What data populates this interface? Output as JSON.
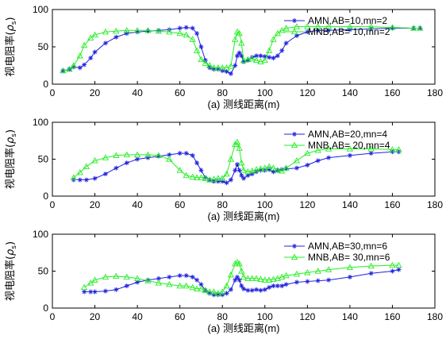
{
  "colors": {
    "series1": "#2020e0",
    "series2": "#22ee22",
    "axis": "#000000"
  },
  "chart_data": [
    {
      "type": "line",
      "xlabel": "(a) 测线距离(m)",
      "ylabel_prefix": "视电阻率(",
      "ylabel_symbol": "ρ",
      "ylabel_sub": "s",
      "ylabel_suffix": ")",
      "xlim": [
        0,
        180
      ],
      "ylim": [
        0,
        100
      ],
      "xticks": [
        "0",
        "20",
        "40",
        "60",
        "80",
        "100",
        "120",
        "140",
        "160",
        "180"
      ],
      "yticks": [
        "0",
        "50",
        "100"
      ],
      "legend_position": "top-right",
      "series": [
        {
          "name": "AMN,AB=10,mn=2",
          "marker": "star",
          "x": [
            5,
            8,
            10,
            13,
            15,
            18,
            20,
            25,
            30,
            35,
            40,
            45,
            50,
            55,
            60,
            63,
            66,
            68,
            70,
            72,
            74,
            76,
            78,
            80,
            82,
            84,
            86,
            87,
            88,
            89,
            90,
            92,
            94,
            96,
            98,
            100,
            102,
            104,
            106,
            108,
            110,
            115,
            120,
            125,
            130,
            140,
            150,
            160,
            170,
            173
          ],
          "y": [
            18,
            20,
            23,
            22,
            26,
            35,
            43,
            55,
            63,
            68,
            70,
            71,
            72,
            73,
            75,
            76,
            75,
            68,
            50,
            32,
            22,
            20,
            20,
            18,
            17,
            14,
            25,
            38,
            42,
            38,
            30,
            32,
            36,
            38,
            38,
            37,
            36,
            35,
            38,
            45,
            55,
            65,
            70,
            72,
            72,
            73,
            74,
            75,
            75,
            75
          ]
        },
        {
          "name": "MNB,AB= 10,mn=2",
          "marker": "triangle",
          "x": [
            5,
            8,
            10,
            13,
            15,
            18,
            20,
            25,
            30,
            35,
            40,
            45,
            50,
            55,
            60,
            63,
            66,
            68,
            70,
            72,
            74,
            76,
            78,
            80,
            82,
            84,
            86,
            87,
            88,
            89,
            90,
            92,
            94,
            96,
            98,
            100,
            102,
            104,
            106,
            108,
            110,
            115,
            120,
            125,
            130,
            140,
            150,
            160,
            170,
            173
          ],
          "y": [
            18,
            20,
            25,
            38,
            52,
            62,
            66,
            70,
            71,
            72,
            72,
            72,
            71,
            70,
            68,
            66,
            60,
            45,
            33,
            28,
            25,
            22,
            22,
            22,
            22,
            24,
            60,
            70,
            68,
            55,
            32,
            33,
            34,
            32,
            30,
            32,
            45,
            60,
            68,
            72,
            75,
            77,
            77,
            77,
            77,
            77,
            77,
            76,
            75,
            75
          ]
        }
      ]
    },
    {
      "type": "line",
      "xlabel": "(a) 测线距离(m)",
      "ylabel_prefix": "视电阻率(",
      "ylabel_symbol": "ρ",
      "ylabel_sub": "s",
      "ylabel_suffix": ")",
      "xlim": [
        0,
        180
      ],
      "ylim": [
        0,
        100
      ],
      "xticks": [
        "0",
        "20",
        "40",
        "60",
        "80",
        "100",
        "120",
        "140",
        "160",
        "180"
      ],
      "yticks": [
        "0",
        "50",
        "100"
      ],
      "legend_position": "top-right",
      "series": [
        {
          "name": "AMN,AB=20,mn=4",
          "marker": "star",
          "x": [
            10,
            13,
            16,
            20,
            25,
            30,
            35,
            40,
            45,
            50,
            55,
            60,
            63,
            66,
            68,
            70,
            72,
            74,
            76,
            78,
            80,
            82,
            84,
            86,
            87,
            88,
            89,
            90,
            92,
            94,
            96,
            98,
            100,
            102,
            104,
            106,
            108,
            110,
            115,
            120,
            125,
            130,
            140,
            150,
            160,
            163
          ],
          "y": [
            22,
            22,
            22,
            24,
            30,
            38,
            45,
            50,
            52,
            54,
            56,
            58,
            58,
            55,
            45,
            35,
            25,
            22,
            20,
            20,
            20,
            18,
            22,
            35,
            43,
            35,
            28,
            24,
            28,
            30,
            33,
            35,
            35,
            36,
            33,
            35,
            36,
            37,
            38,
            42,
            48,
            52,
            55,
            58,
            60,
            60
          ]
        },
        {
          "name": "MNB,AB= 20,mn=4",
          "marker": "triangle",
          "x": [
            10,
            13,
            16,
            20,
            25,
            30,
            35,
            40,
            45,
            50,
            55,
            60,
            63,
            66,
            68,
            70,
            72,
            74,
            76,
            78,
            80,
            82,
            84,
            86,
            87,
            88,
            89,
            90,
            92,
            94,
            96,
            98,
            100,
            102,
            104,
            106,
            108,
            110,
            115,
            120,
            125,
            130,
            140,
            150,
            160,
            163
          ],
          "y": [
            25,
            32,
            40,
            48,
            52,
            55,
            56,
            56,
            56,
            55,
            50,
            35,
            28,
            26,
            25,
            25,
            24,
            22,
            23,
            24,
            24,
            30,
            50,
            70,
            73,
            65,
            45,
            35,
            33,
            34,
            36,
            37,
            38,
            40,
            38,
            35,
            34,
            38,
            48,
            58,
            62,
            64,
            64,
            64,
            63,
            63
          ]
        }
      ]
    },
    {
      "type": "line",
      "xlabel": "(a) 测线距离(m)",
      "ylabel_prefix": "视电阻率(",
      "ylabel_symbol": "ρ",
      "ylabel_sub": "s",
      "ylabel_suffix": ")",
      "xlim": [
        0,
        180
      ],
      "ylim": [
        0,
        100
      ],
      "xticks": [
        "0",
        "20",
        "40",
        "60",
        "80",
        "100",
        "120",
        "140",
        "160",
        "180"
      ],
      "yticks": [
        "0",
        "50",
        "100"
      ],
      "legend_position": "top-right",
      "series": [
        {
          "name": "AMN,AB=30,mn=6",
          "marker": "star",
          "x": [
            15,
            18,
            20,
            25,
            30,
            35,
            40,
            45,
            50,
            55,
            60,
            63,
            66,
            68,
            70,
            72,
            74,
            76,
            78,
            80,
            82,
            84,
            86,
            87,
            88,
            89,
            90,
            92,
            94,
            96,
            98,
            100,
            102,
            104,
            106,
            108,
            110,
            115,
            120,
            125,
            130,
            140,
            150,
            160,
            163
          ],
          "y": [
            22,
            22,
            22,
            23,
            25,
            30,
            35,
            38,
            40,
            42,
            44,
            44,
            42,
            38,
            32,
            24,
            20,
            18,
            18,
            18,
            20,
            25,
            38,
            42,
            38,
            30,
            26,
            24,
            24,
            25,
            24,
            25,
            28,
            30,
            30,
            30,
            32,
            35,
            36,
            37,
            38,
            42,
            47,
            50,
            52
          ]
        },
        {
          "name": "MNB,AB= 30,mn=6",
          "marker": "triangle",
          "x": [
            15,
            18,
            20,
            25,
            30,
            35,
            40,
            45,
            50,
            55,
            60,
            63,
            66,
            68,
            70,
            72,
            74,
            76,
            78,
            80,
            82,
            84,
            86,
            87,
            88,
            89,
            90,
            92,
            94,
            96,
            98,
            100,
            102,
            104,
            106,
            108,
            110,
            115,
            120,
            125,
            130,
            140,
            150,
            160,
            163
          ],
          "y": [
            28,
            34,
            38,
            42,
            43,
            42,
            40,
            37,
            34,
            32,
            30,
            30,
            28,
            26,
            26,
            24,
            22,
            22,
            20,
            22,
            30,
            45,
            60,
            62,
            60,
            50,
            42,
            40,
            40,
            40,
            39,
            38,
            38,
            39,
            40,
            42,
            44,
            46,
            48,
            50,
            52,
            55,
            57,
            58,
            58
          ]
        }
      ]
    }
  ]
}
